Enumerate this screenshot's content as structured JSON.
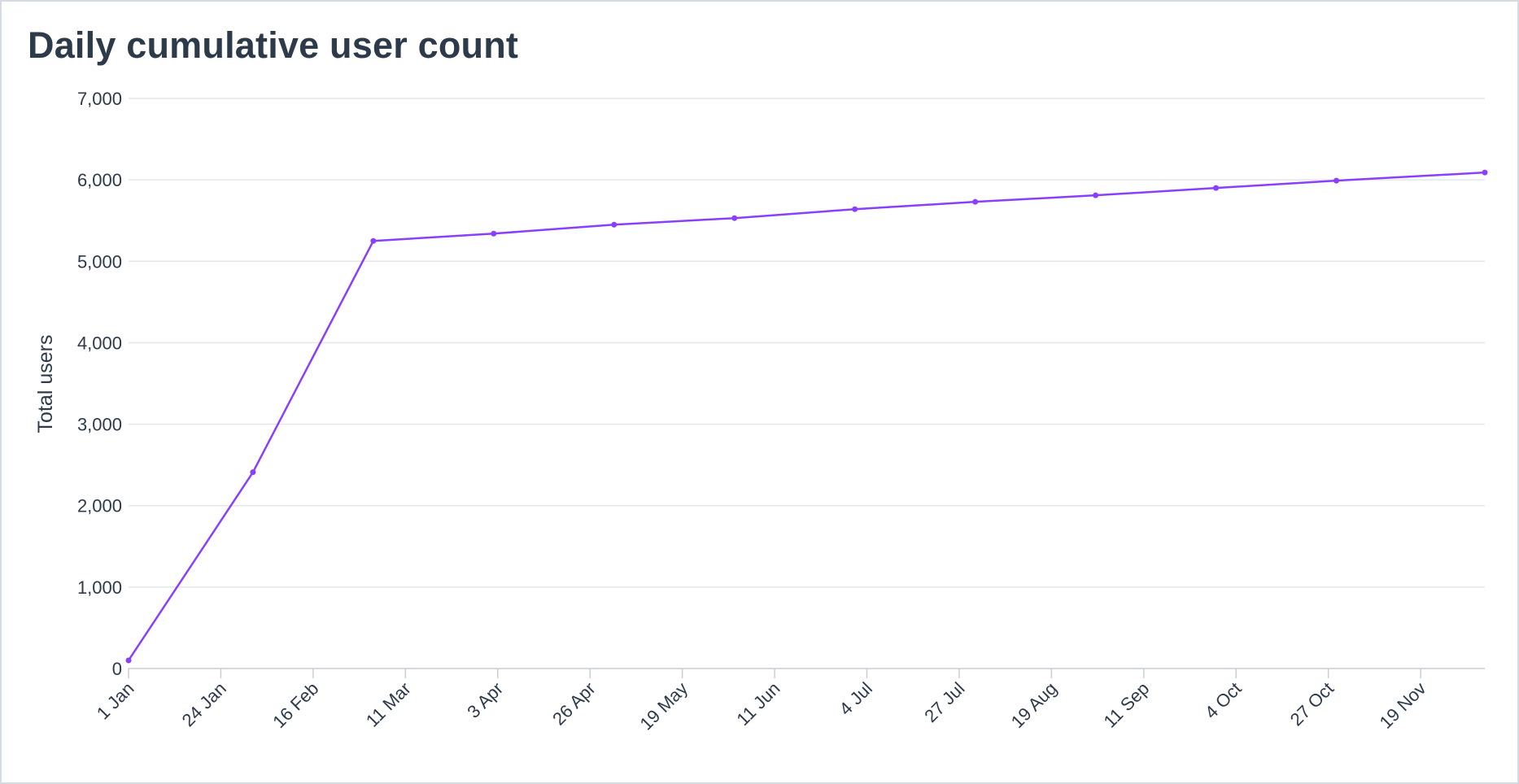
{
  "chart_data": {
    "type": "line",
    "title": "Daily cumulative user count",
    "xlabel": "",
    "ylabel": "Total users",
    "ylim": [
      0,
      7000
    ],
    "yticks": [
      "0",
      "1,000",
      "2,000",
      "3,000",
      "4,000",
      "5,000",
      "6,000",
      "7,000"
    ],
    "xticks": [
      "1 Jan",
      "24 Jan",
      "16 Feb",
      "11 Mar",
      "3 Apr",
      "26 Apr",
      "19 May",
      "11 Jun",
      "4 Jul",
      "27 Jul",
      "19 Aug",
      "11 Sep",
      "4 Oct",
      "27 Oct",
      "19 Nov"
    ],
    "x_start": "1 Jan",
    "x_end": "5 Dec",
    "grid": true,
    "legend": "none",
    "series": [
      {
        "color": "#8a3ffc",
        "points": [
          {
            "x": "1 Jan",
            "y": 100
          },
          {
            "x": "1 Feb",
            "y": 2410
          },
          {
            "x": "3 Mar",
            "y": 5250
          },
          {
            "x": "2 Apr",
            "y": 5340
          },
          {
            "x": "2 May",
            "y": 5450
          },
          {
            "x": "1 Jun",
            "y": 5530
          },
          {
            "x": "1 Jul",
            "y": 5640
          },
          {
            "x": "31 Jul",
            "y": 5730
          },
          {
            "x": "30 Aug",
            "y": 5810
          },
          {
            "x": "29 Sep",
            "y": 5900
          },
          {
            "x": "29 Oct",
            "y": 5990
          },
          {
            "x": "5 Dec",
            "y": 6090
          }
        ]
      }
    ]
  }
}
